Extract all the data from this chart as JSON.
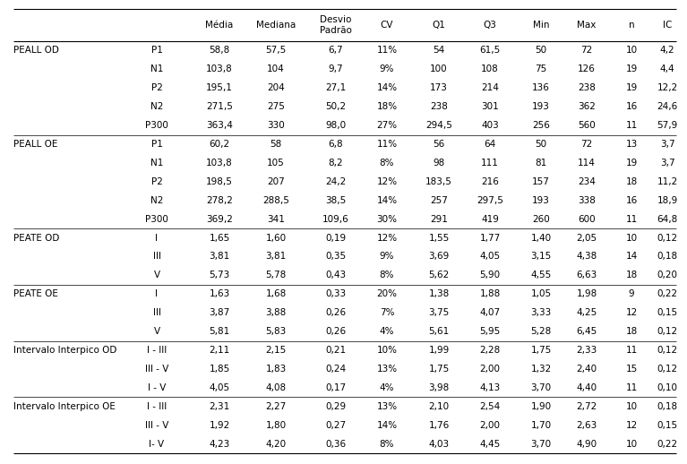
{
  "bg_color": "#ffffff",
  "text_color": "#000000",
  "header_fontsize": 7.5,
  "cell_fontsize": 7.5,
  "headers": [
    "Média",
    "Mediana",
    "Desvio\nPadrão",
    "CV",
    "Q1",
    "Q3",
    "Min",
    "Max",
    "n",
    "IC"
  ],
  "rows": [
    [
      "PEALL OD",
      "P1",
      "58,8",
      "57,5",
      "6,7",
      "11%",
      "54",
      "61,5",
      "50",
      "72",
      "10",
      "4,2"
    ],
    [
      "",
      "N1",
      "103,8",
      "104",
      "9,7",
      "9%",
      "100",
      "108",
      "75",
      "126",
      "19",
      "4,4"
    ],
    [
      "",
      "P2",
      "195,1",
      "204",
      "27,1",
      "14%",
      "173",
      "214",
      "136",
      "238",
      "19",
      "12,2"
    ],
    [
      "",
      "N2",
      "271,5",
      "275",
      "50,2",
      "18%",
      "238",
      "301",
      "193",
      "362",
      "16",
      "24,6"
    ],
    [
      "",
      "P300",
      "363,4",
      "330",
      "98,0",
      "27%",
      "294,5",
      "403",
      "256",
      "560",
      "11",
      "57,9"
    ],
    [
      "PEALL OE",
      "P1",
      "60,2",
      "58",
      "6,8",
      "11%",
      "56",
      "64",
      "50",
      "72",
      "13",
      "3,7"
    ],
    [
      "",
      "N1",
      "103,8",
      "105",
      "8,2",
      "8%",
      "98",
      "111",
      "81",
      "114",
      "19",
      "3,7"
    ],
    [
      "",
      "P2",
      "198,5",
      "207",
      "24,2",
      "12%",
      "183,5",
      "216",
      "157",
      "234",
      "18",
      "11,2"
    ],
    [
      "",
      "N2",
      "278,2",
      "288,5",
      "38,5",
      "14%",
      "257",
      "297,5",
      "193",
      "338",
      "16",
      "18,9"
    ],
    [
      "",
      "P300",
      "369,2",
      "341",
      "109,6",
      "30%",
      "291",
      "419",
      "260",
      "600",
      "11",
      "64,8"
    ],
    [
      "PEATE OD",
      "I",
      "1,65",
      "1,60",
      "0,19",
      "12%",
      "1,55",
      "1,77",
      "1,40",
      "2,05",
      "10",
      "0,12"
    ],
    [
      "",
      "III",
      "3,81",
      "3,81",
      "0,35",
      "9%",
      "3,69",
      "4,05",
      "3,15",
      "4,38",
      "14",
      "0,18"
    ],
    [
      "",
      "V",
      "5,73",
      "5,78",
      "0,43",
      "8%",
      "5,62",
      "5,90",
      "4,55",
      "6,63",
      "18",
      "0,20"
    ],
    [
      "PEATE OE",
      "I",
      "1,63",
      "1,68",
      "0,33",
      "20%",
      "1,38",
      "1,88",
      "1,05",
      "1,98",
      "9",
      "0,22"
    ],
    [
      "",
      "III",
      "3,87",
      "3,88",
      "0,26",
      "7%",
      "3,75",
      "4,07",
      "3,33",
      "4,25",
      "12",
      "0,15"
    ],
    [
      "",
      "V",
      "5,81",
      "5,83",
      "0,26",
      "4%",
      "5,61",
      "5,95",
      "5,28",
      "6,45",
      "18",
      "0,12"
    ],
    [
      "Intervalo Interpico OD",
      "I - III",
      "2,11",
      "2,15",
      "0,21",
      "10%",
      "1,99",
      "2,28",
      "1,75",
      "2,33",
      "11",
      "0,12"
    ],
    [
      "",
      "III - V",
      "1,85",
      "1,83",
      "0,24",
      "13%",
      "1,75",
      "2,00",
      "1,32",
      "2,40",
      "15",
      "0,12"
    ],
    [
      "",
      "I - V",
      "4,05",
      "4,08",
      "0,17",
      "4%",
      "3,98",
      "4,13",
      "3,70",
      "4,40",
      "11",
      "0,10"
    ],
    [
      "Intervalo Interpico OE",
      "I - III",
      "2,31",
      "2,27",
      "0,29",
      "13%",
      "2,10",
      "2,54",
      "1,90",
      "2,72",
      "10",
      "0,18"
    ],
    [
      "",
      "III - V",
      "1,92",
      "1,80",
      "0,27",
      "14%",
      "1,76",
      "2,00",
      "1,70",
      "2,63",
      "12",
      "0,15"
    ],
    [
      "",
      "I- V",
      "4,23",
      "4,20",
      "0,36",
      "8%",
      "4,03",
      "4,45",
      "3,70",
      "4,90",
      "10",
      "0,22"
    ]
  ],
  "separator_before_rows": [
    5,
    10,
    13,
    16,
    19
  ]
}
